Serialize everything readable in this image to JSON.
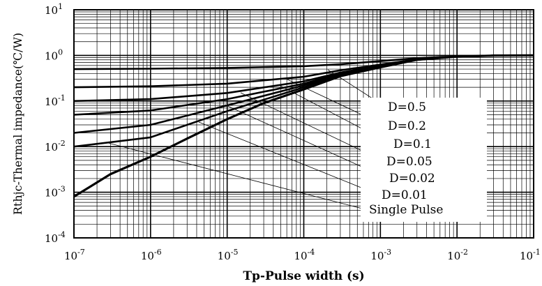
{
  "chart_data": {
    "type": "line",
    "xlabel": "Tp-Pulse width (s)",
    "ylabel": "Rthjc-Thermal impedance(℃/W)",
    "xscale": "log",
    "yscale": "log",
    "xlim": [
      1e-07,
      0.1
    ],
    "ylim": [
      0.0001,
      10
    ],
    "grid": true,
    "x_ticks": [
      {
        "value": 1e-07,
        "base": "10",
        "exp": "-7"
      },
      {
        "value": 1e-06,
        "base": "10",
        "exp": "-6"
      },
      {
        "value": 1e-05,
        "base": "10",
        "exp": "-5"
      },
      {
        "value": 0.0001,
        "base": "10",
        "exp": "-4"
      },
      {
        "value": 0.001,
        "base": "10",
        "exp": "-3"
      },
      {
        "value": 0.01,
        "base": "10",
        "exp": "-2"
      },
      {
        "value": 0.1,
        "base": "10",
        "exp": "-1"
      }
    ],
    "y_ticks": [
      {
        "value": 10,
        "base": "10",
        "exp": "1"
      },
      {
        "value": 1,
        "base": "10",
        "exp": "0"
      },
      {
        "value": 0.1,
        "base": "10",
        "exp": "-1"
      },
      {
        "value": 0.01,
        "base": "10",
        "exp": "-2"
      },
      {
        "value": 0.001,
        "base": "10",
        "exp": "-3"
      },
      {
        "value": 0.0001,
        "base": "10",
        "exp": "-4"
      }
    ],
    "legend_placement": "lower-right",
    "series": [
      {
        "name": "D=0.5",
        "x": [
          1e-07,
          1e-06,
          1e-05,
          0.0001,
          0.0003,
          0.001,
          0.003,
          0.01,
          0.03,
          0.1
        ],
        "y": [
          0.5,
          0.51,
          0.53,
          0.58,
          0.64,
          0.75,
          0.87,
          0.95,
          0.99,
          1.0
        ]
      },
      {
        "name": "D=0.2",
        "x": [
          1e-07,
          1e-06,
          1e-05,
          0.0001,
          0.0003,
          0.001,
          0.003,
          0.01,
          0.03,
          0.1
        ],
        "y": [
          0.2,
          0.21,
          0.24,
          0.34,
          0.47,
          0.63,
          0.82,
          0.94,
          0.99,
          1.0
        ]
      },
      {
        "name": "D=0.1",
        "x": [
          1e-07,
          1e-06,
          1e-05,
          0.0001,
          0.0003,
          0.001,
          0.003,
          0.01,
          0.03,
          0.1
        ],
        "y": [
          0.1,
          0.11,
          0.15,
          0.27,
          0.42,
          0.6,
          0.81,
          0.94,
          0.99,
          1.0
        ]
      },
      {
        "name": "D=0.05",
        "x": [
          1e-07,
          1e-06,
          1e-05,
          0.0001,
          0.0003,
          0.001,
          0.003,
          0.01,
          0.03,
          0.1
        ],
        "y": [
          0.05,
          0.062,
          0.11,
          0.24,
          0.4,
          0.58,
          0.8,
          0.94,
          0.99,
          1.0
        ]
      },
      {
        "name": "D=0.02",
        "x": [
          1e-07,
          1e-06,
          1e-05,
          0.0001,
          0.0003,
          0.001,
          0.003,
          0.01,
          0.03,
          0.1
        ],
        "y": [
          0.02,
          0.03,
          0.08,
          0.22,
          0.39,
          0.57,
          0.8,
          0.94,
          0.99,
          1.0
        ]
      },
      {
        "name": "D=0.01",
        "x": [
          1e-07,
          1e-06,
          1e-05,
          0.0001,
          0.0003,
          0.001,
          0.003,
          0.01,
          0.03,
          0.1
        ],
        "y": [
          0.01,
          0.016,
          0.06,
          0.2,
          0.38,
          0.56,
          0.8,
          0.94,
          0.99,
          1.0
        ]
      },
      {
        "name": "Single Pulse",
        "x": [
          1e-07,
          3e-07,
          1e-06,
          3e-06,
          1e-05,
          3e-05,
          0.0001,
          0.0003,
          0.001,
          0.003,
          0.01,
          0.03,
          0.1
        ],
        "y": [
          0.0008,
          0.0025,
          0.006,
          0.015,
          0.04,
          0.09,
          0.18,
          0.35,
          0.55,
          0.8,
          0.94,
          0.99,
          1.0
        ]
      }
    ]
  }
}
